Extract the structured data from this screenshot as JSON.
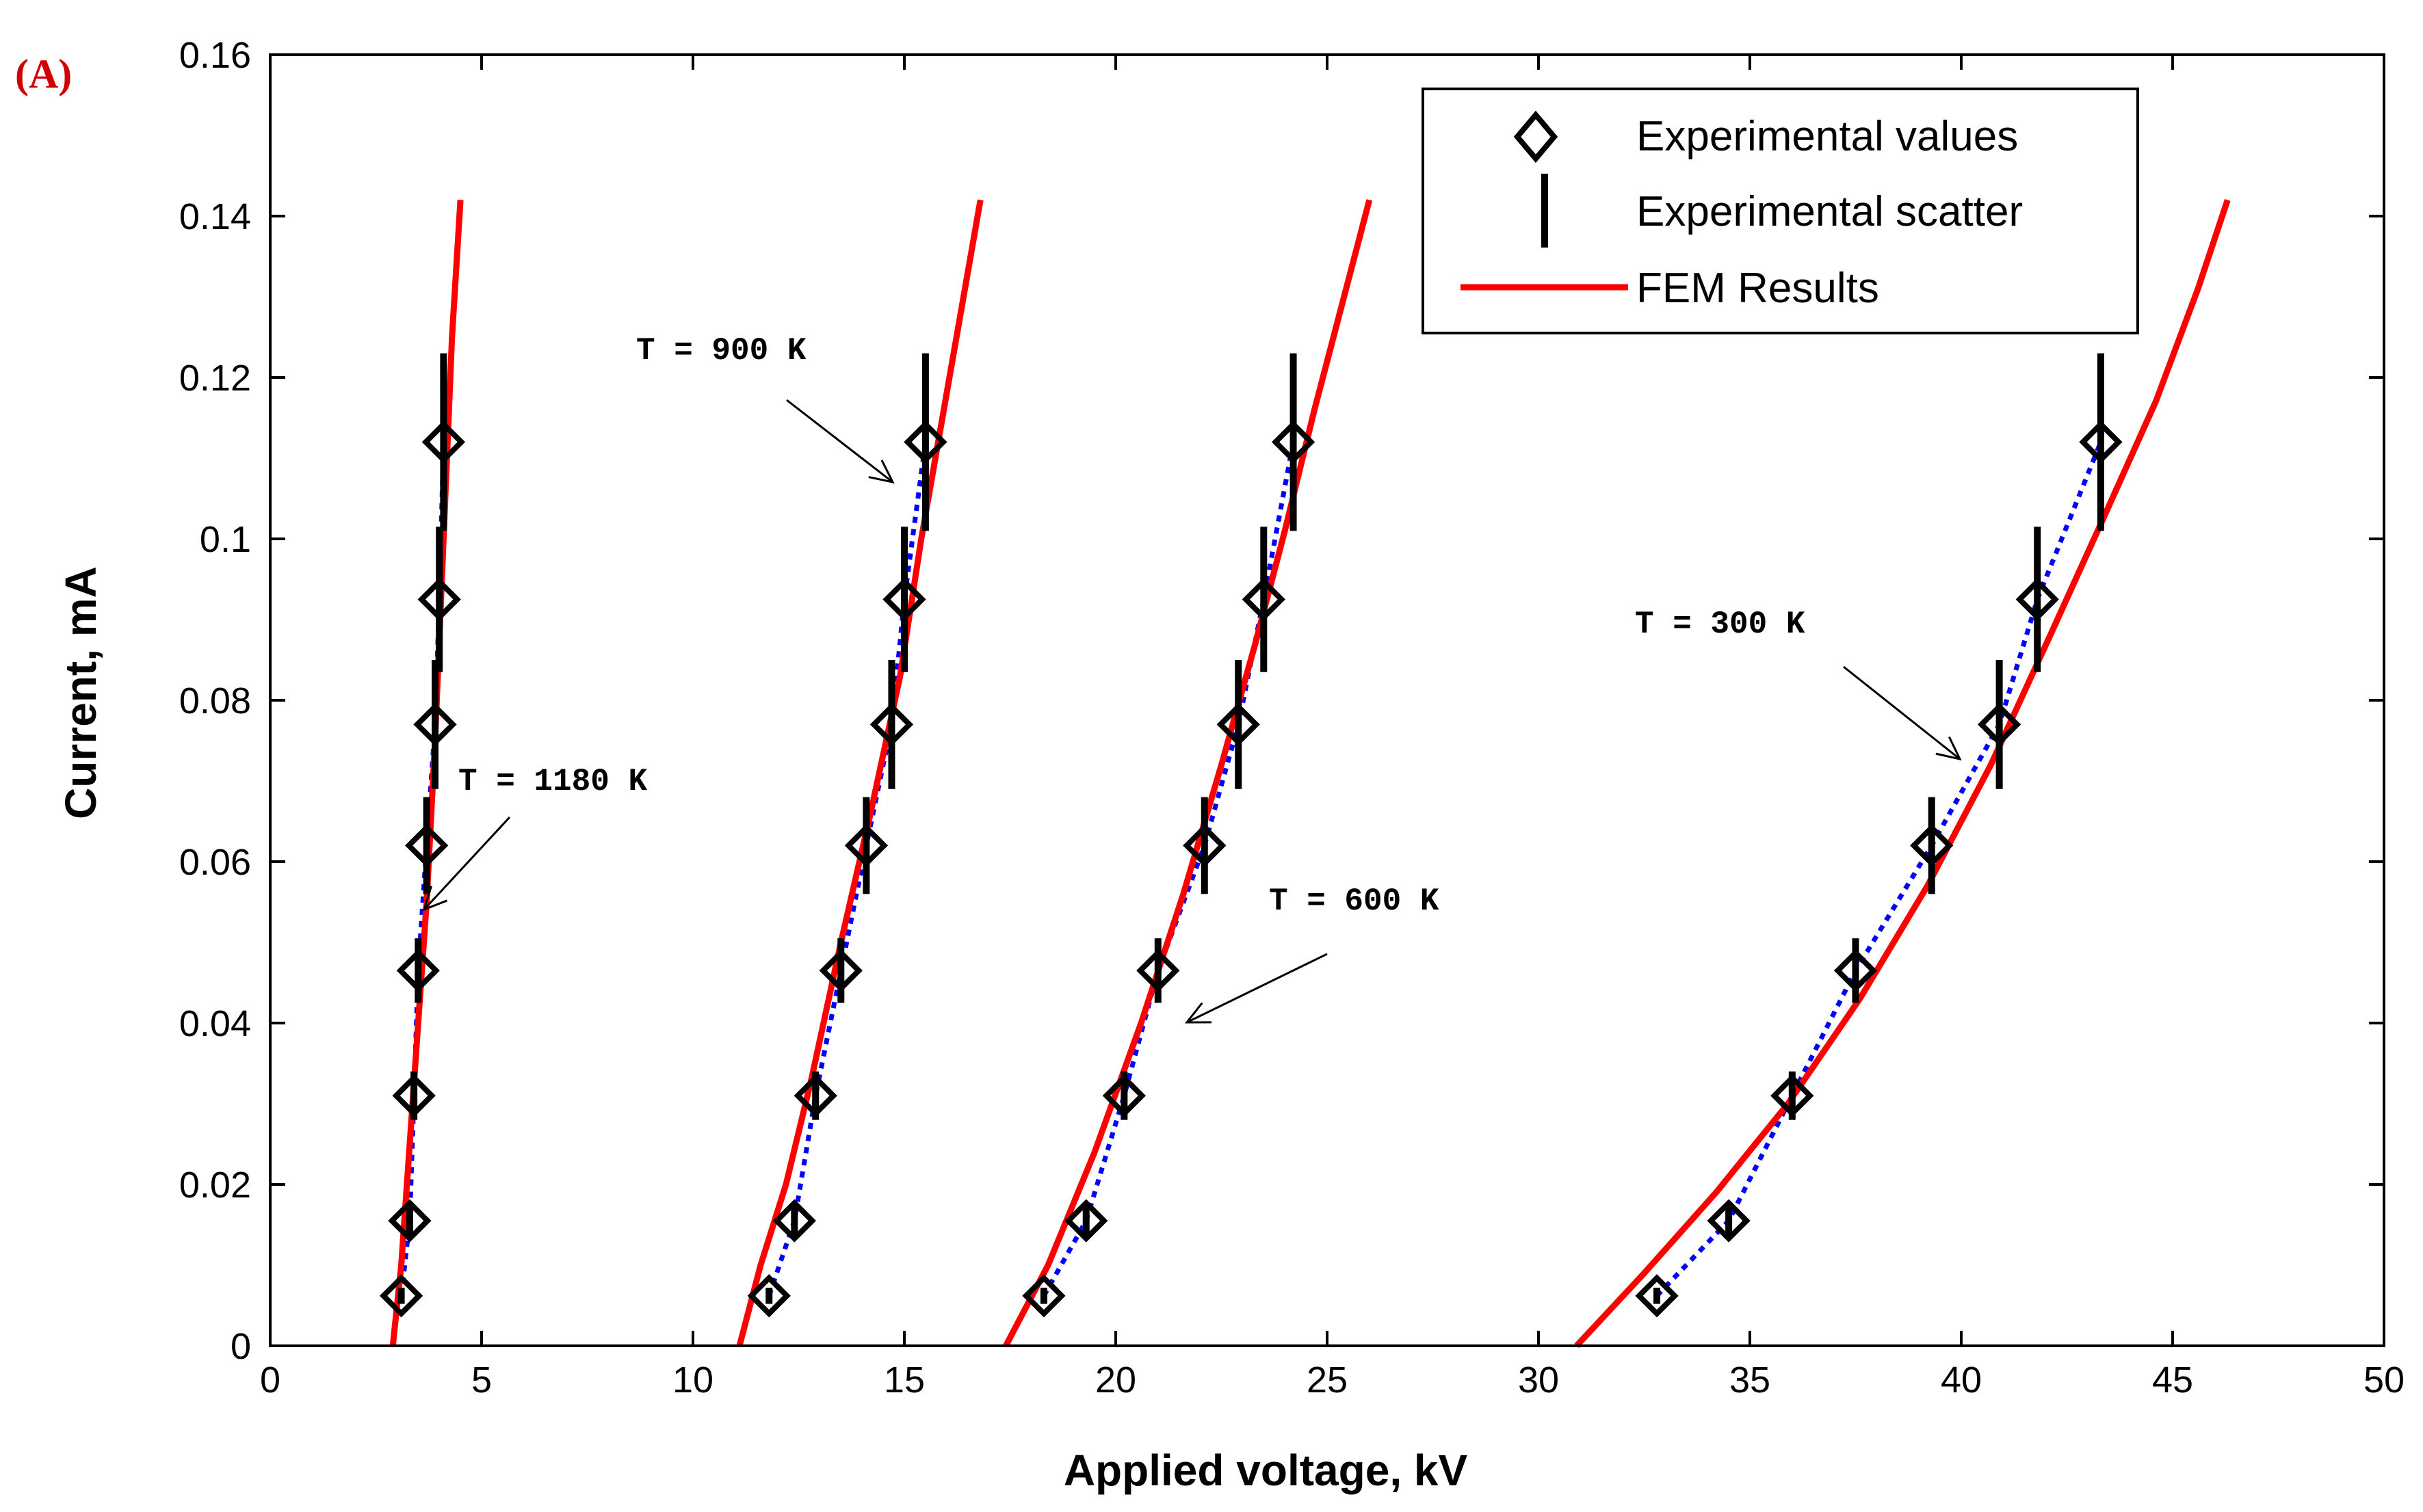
{
  "panel_label": "(A)",
  "chart_data": {
    "type": "line",
    "title": "",
    "xlabel": "Applied voltage, kV",
    "ylabel": "Current, mA",
    "xlim": [
      0,
      50
    ],
    "ylim": [
      0,
      0.16
    ],
    "xticks": [
      "0",
      "5",
      "10",
      "15",
      "20",
      "25",
      "30",
      "35",
      "40",
      "45",
      "50"
    ],
    "yticks": [
      "0",
      "0.02",
      "0.04",
      "0.06",
      "0.08",
      "0.1",
      "0.12",
      "0.14",
      "0.16"
    ],
    "grid": false,
    "legend": {
      "placement": "top-right",
      "entries": [
        "Experimental values",
        "Experimental scatter",
        "FEM Results"
      ]
    },
    "colors": {
      "fem": "#ff0000",
      "fit": "#0000ff",
      "markers": "#000000",
      "panel_label": "#d00000"
    },
    "series": [
      {
        "temperature": "T = 1180 K",
        "experimental": {
          "x": [
            3.1,
            3.3,
            3.4,
            3.5,
            3.7,
            3.9,
            4.0,
            4.1
          ],
          "y": [
            0.0062,
            0.0155,
            0.031,
            0.0465,
            0.062,
            0.077,
            0.0925,
            0.112
          ],
          "err": [
            0.001,
            0.002,
            0.003,
            0.004,
            0.006,
            0.008,
            0.009,
            0.011
          ]
        },
        "fem": {
          "x": [
            2.9,
            3.1,
            3.3,
            3.5,
            3.7,
            3.9,
            4.1,
            4.3,
            4.5
          ],
          "y": [
            0,
            0.01,
            0.025,
            0.04,
            0.055,
            0.075,
            0.1,
            0.125,
            0.142
          ]
        }
      },
      {
        "temperature": "T = 900 K",
        "experimental": {
          "x": [
            11.8,
            12.4,
            12.9,
            13.5,
            14.1,
            14.7,
            15.0,
            15.5
          ],
          "y": [
            0.0062,
            0.0155,
            0.031,
            0.0465,
            0.062,
            0.077,
            0.0925,
            0.112
          ],
          "err": [
            0.001,
            0.002,
            0.003,
            0.004,
            0.006,
            0.008,
            0.009,
            0.011
          ]
        },
        "fem": {
          "x": [
            11.1,
            11.6,
            12.2,
            12.8,
            13.5,
            14.2,
            14.9,
            15.4,
            15.9,
            16.4,
            16.8
          ],
          "y": [
            0,
            0.01,
            0.02,
            0.033,
            0.05,
            0.066,
            0.083,
            0.1,
            0.115,
            0.13,
            0.142
          ]
        }
      },
      {
        "temperature": "T = 600 K",
        "experimental": {
          "x": [
            18.3,
            19.3,
            20.2,
            21.0,
            22.1,
            22.9,
            23.5,
            24.2
          ],
          "y": [
            0.0062,
            0.0155,
            0.031,
            0.0465,
            0.062,
            0.077,
            0.0925,
            0.112
          ],
          "err": [
            0.001,
            0.002,
            0.003,
            0.004,
            0.006,
            0.008,
            0.009,
            0.011
          ]
        },
        "fem": {
          "x": [
            17.4,
            18.4,
            19.5,
            20.6,
            21.6,
            22.5,
            23.3,
            24.0,
            24.7,
            25.4,
            26.0
          ],
          "y": [
            0,
            0.01,
            0.024,
            0.04,
            0.056,
            0.072,
            0.087,
            0.101,
            0.116,
            0.13,
            0.142
          ]
        }
      },
      {
        "temperature": "T = 300 K",
        "experimental": {
          "x": [
            32.8,
            34.5,
            36.0,
            37.5,
            39.3,
            40.9,
            41.8,
            43.3
          ],
          "y": [
            0.0062,
            0.0155,
            0.031,
            0.0465,
            0.062,
            0.077,
            0.0925,
            0.112
          ],
          "err": [
            0.001,
            0.002,
            0.003,
            0.004,
            0.006,
            0.008,
            0.009,
            0.011
          ]
        },
        "fem": {
          "x": [
            30.9,
            32.5,
            34.2,
            35.9,
            37.6,
            39.2,
            40.7,
            42.1,
            43.4,
            44.6,
            45.6,
            46.3
          ],
          "y": [
            0,
            0.009,
            0.019,
            0.03,
            0.043,
            0.057,
            0.072,
            0.088,
            0.103,
            0.117,
            0.131,
            0.142
          ]
        }
      }
    ],
    "annotations": [
      {
        "text": "T = 900 K"
      },
      {
        "text": "T = 1180 K"
      },
      {
        "text": "T = 600 K"
      },
      {
        "text": "T = 300 K"
      }
    ]
  }
}
